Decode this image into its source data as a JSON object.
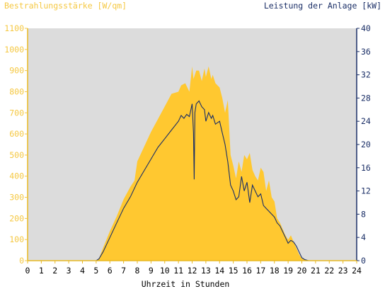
{
  "chart_data": {
    "type": "area",
    "ylabel_left": "Bestrahlungsstärke [W/qm]",
    "ylabel_right": "Leistung der Anlage [kW]",
    "xlabel": "Uhrzeit in Stunden",
    "x_ticks": [
      "0",
      "1",
      "2",
      "3",
      "4",
      "5",
      "6",
      "7",
      "8",
      "9",
      "10",
      "11",
      "12",
      "13",
      "14",
      "15",
      "16",
      "17",
      "18",
      "19",
      "20",
      "21",
      "22",
      "23",
      "24"
    ],
    "y_left_ticks": [
      "0",
      "100",
      "200",
      "300",
      "400",
      "500",
      "600",
      "700",
      "800",
      "900",
      "1000",
      "1100"
    ],
    "y_right_ticks": [
      "0",
      "4",
      "8",
      "12",
      "16",
      "20",
      "24",
      "28",
      "32",
      "36",
      "40"
    ],
    "xlim": [
      0,
      24
    ],
    "ylim_left": [
      0,
      1100
    ],
    "ylim_right": [
      0,
      40
    ],
    "colors": {
      "irradiance": "#ffc830",
      "power": "#1a2e66",
      "plot_bg": "#dcdcdc",
      "left_axis": "#f5c842",
      "right_axis": "#1a2e66"
    },
    "series": [
      {
        "axis": "left",
        "x": [
          0,
          5,
          5.2,
          5.5,
          6,
          6.5,
          7,
          7.5,
          7.8,
          8,
          8.5,
          9,
          9.5,
          10,
          10.5,
          11,
          11.2,
          11.5,
          11.8,
          12,
          12.1,
          12.3,
          12.5,
          12.7,
          12.9,
          13,
          13.2,
          13.4,
          13.5,
          13.7,
          14,
          14.2,
          14.4,
          14.6,
          14.8,
          15,
          15.2,
          15.4,
          15.6,
          15.8,
          16,
          16.2,
          16.4,
          16.6,
          16.8,
          17,
          17.2,
          17.4,
          17.6,
          17.8,
          18,
          18.2,
          18.4,
          18.6,
          18.8,
          19,
          19.2,
          19.4,
          19.6,
          19.8,
          20,
          20.2,
          20.5,
          21,
          24
        ],
        "values": [
          0,
          0,
          10,
          60,
          140,
          210,
          290,
          350,
          380,
          470,
          540,
          610,
          670,
          730,
          790,
          800,
          830,
          840,
          800,
          920,
          860,
          900,
          900,
          850,
          910,
          870,
          920,
          860,
          880,
          840,
          820,
          770,
          700,
          760,
          500,
          450,
          390,
          470,
          420,
          500,
          480,
          510,
          430,
          400,
          380,
          440,
          420,
          330,
          380,
          300,
          280,
          200,
          180,
          150,
          120,
          100,
          120,
          90,
          60,
          30,
          10,
          5,
          0,
          0,
          0
        ]
      },
      {
        "axis": "right",
        "x": [
          0,
          5,
          5.2,
          5.5,
          6,
          6.5,
          7,
          7.5,
          8,
          8.5,
          9,
          9.5,
          10,
          10.5,
          11,
          11.2,
          11.4,
          11.6,
          11.8,
          12,
          12.1,
          12.15,
          12.2,
          12.3,
          12.5,
          12.7,
          12.9,
          13,
          13.2,
          13.4,
          13.5,
          13.7,
          14,
          14.2,
          14.4,
          14.6,
          14.8,
          15,
          15.2,
          15.4,
          15.6,
          15.8,
          16,
          16.2,
          16.4,
          16.6,
          16.8,
          17,
          17.2,
          17.4,
          17.6,
          17.8,
          18,
          18.2,
          18.4,
          18.6,
          18.8,
          19,
          19.2,
          19.4,
          19.6,
          19.8,
          20,
          20.2,
          20.5,
          21,
          24
        ],
        "values": [
          0,
          0,
          0.3,
          1.5,
          4,
          6.5,
          9,
          11,
          13.5,
          15.5,
          17.5,
          19.5,
          21,
          22.5,
          24,
          25,
          24.5,
          25.2,
          24.8,
          27,
          22,
          14,
          25.5,
          27,
          27.5,
          26.5,
          26,
          24,
          25.5,
          24.5,
          25,
          23.5,
          24,
          22,
          20,
          17,
          13,
          12,
          10.5,
          11,
          14.5,
          12,
          13.5,
          10,
          13,
          12,
          11,
          11.5,
          9.5,
          9,
          8.5,
          8,
          7.5,
          6.5,
          6,
          5,
          4,
          3,
          3.5,
          3.2,
          2.5,
          1.5,
          0.5,
          0.2,
          0,
          0,
          0
        ]
      }
    ]
  }
}
